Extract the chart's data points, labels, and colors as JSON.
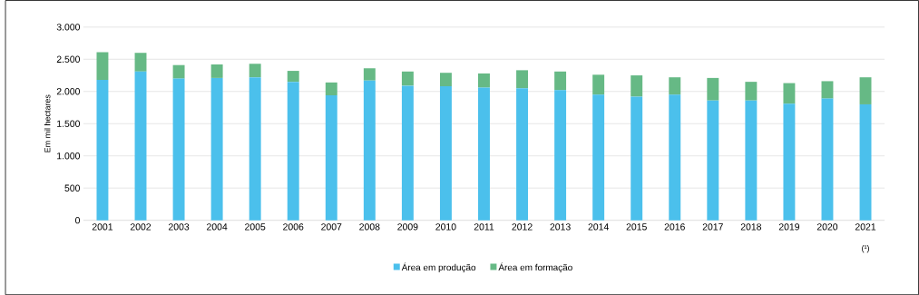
{
  "chart_data": {
    "type": "bar",
    "stacked": true,
    "ylabel": "Em mil hectares",
    "categories": [
      "2001",
      "2002",
      "2003",
      "2004",
      "2005",
      "2006",
      "2007",
      "2008",
      "2009",
      "2010",
      "2011",
      "2012",
      "2013",
      "2014",
      "2015",
      "2016",
      "2017",
      "2018",
      "2019",
      "2020",
      "2021"
    ],
    "series": [
      {
        "name": "Área em produção",
        "color": "#4bc0ec",
        "values": [
          2180,
          2310,
          2200,
          2210,
          2220,
          2150,
          1940,
          2170,
          2090,
          2080,
          2060,
          2050,
          2020,
          1950,
          1920,
          1950,
          1860,
          1860,
          1810,
          1890,
          1800
        ]
      },
      {
        "name": "Área em formação",
        "color": "#66b985",
        "values": [
          430,
          290,
          210,
          210,
          210,
          170,
          200,
          190,
          220,
          210,
          220,
          280,
          290,
          310,
          330,
          270,
          350,
          290,
          320,
          270,
          420
        ]
      }
    ],
    "ylim": [
      0,
      3000
    ],
    "yticks": [
      {
        "value": 0,
        "label": "0"
      },
      {
        "value": 500,
        "label": "500"
      },
      {
        "value": 1000,
        "label": "1.000"
      },
      {
        "value": 1500,
        "label": "1.500"
      },
      {
        "value": 2000,
        "label": "2.000"
      },
      {
        "value": 2500,
        "label": "2.500"
      },
      {
        "value": 3000,
        "label": "3.000"
      }
    ],
    "grid": "y",
    "legend": "bottom",
    "annotations": [
      "(¹)"
    ]
  }
}
